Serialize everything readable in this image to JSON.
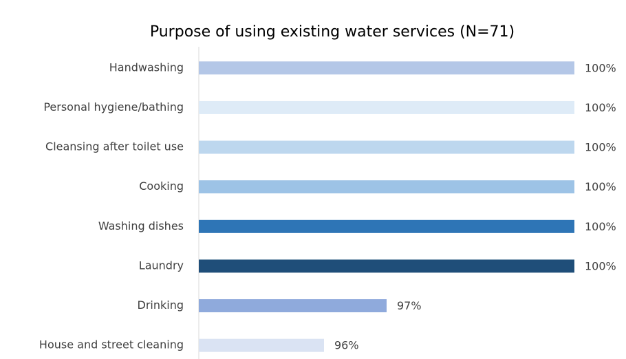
{
  "chart_data": {
    "type": "barh",
    "title": "Purpose of using existing water services (N=71)",
    "categories": [
      "Handwashing",
      "Personal hygiene/bathing",
      "Cleansing after toilet use",
      "Cooking",
      "Washing dishes",
      "Laundry",
      "Drinking",
      "House and street cleaning"
    ],
    "values": [
      100,
      100,
      100,
      100,
      100,
      100,
      97,
      96
    ],
    "value_labels": [
      "100%",
      "100%",
      "100%",
      "100%",
      "100%",
      "100%",
      "97%",
      "96%"
    ],
    "colors": [
      "#b4c7e7",
      "#deebf7",
      "#bdd7ee",
      "#9dc3e6",
      "#2e75b6",
      "#1f4e79",
      "#8faadc",
      "#dae3f3"
    ],
    "xlim": [
      94,
      100
    ]
  }
}
